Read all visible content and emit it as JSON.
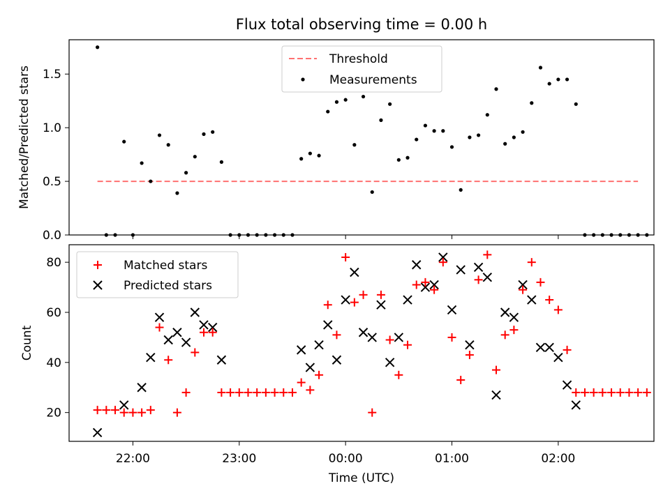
{
  "chart_data": [
    {
      "type": "scatter",
      "title": "Flux total observing time = 0.00 h",
      "xlabel": "",
      "ylabel": "Matched/Predicted stars",
      "xlim": [
        "21:24",
        "02:54"
      ],
      "ylim": [
        0,
        1.82
      ],
      "y_ticks": [
        {
          "value": 0.0,
          "label": "0.0"
        },
        {
          "value": 0.5,
          "label": "0.5"
        },
        {
          "value": 1.0,
          "label": "1.0"
        },
        {
          "value": 1.5,
          "label": "1.5"
        }
      ],
      "grid": false,
      "legend_position": "top-center",
      "series": [
        {
          "name": "Threshold",
          "kind": "dashed-line",
          "color": "#ff7070",
          "x": [
            "21:40",
            "02:45"
          ],
          "y": [
            0.5,
            0.5
          ]
        },
        {
          "name": "Measurements",
          "kind": "points",
          "color": "#000000",
          "points": [
            [
              "21:40",
              1.75
            ],
            [
              "21:45",
              0.0
            ],
            [
              "21:50",
              0.0
            ],
            [
              "21:55",
              0.87
            ],
            [
              "22:00",
              0.0
            ],
            [
              "22:05",
              0.67
            ],
            [
              "22:10",
              0.5
            ],
            [
              "22:15",
              0.93
            ],
            [
              "22:20",
              0.84
            ],
            [
              "22:25",
              0.39
            ],
            [
              "22:30",
              0.58
            ],
            [
              "22:35",
              0.73
            ],
            [
              "22:40",
              0.94
            ],
            [
              "22:45",
              0.96
            ],
            [
              "22:50",
              0.68
            ],
            [
              "22:55",
              0.0
            ],
            [
              "23:00",
              0.0
            ],
            [
              "23:05",
              0.0
            ],
            [
              "23:10",
              0.0
            ],
            [
              "23:15",
              0.0
            ],
            [
              "23:20",
              0.0
            ],
            [
              "23:25",
              0.0
            ],
            [
              "23:30",
              0.0
            ],
            [
              "23:35",
              0.71
            ],
            [
              "23:40",
              0.76
            ],
            [
              "23:45",
              0.74
            ],
            [
              "23:50",
              1.15
            ],
            [
              "23:55",
              1.24
            ],
            [
              "00:00",
              1.26
            ],
            [
              "00:05",
              0.84
            ],
            [
              "00:10",
              1.29
            ],
            [
              "00:15",
              0.4
            ],
            [
              "00:20",
              1.07
            ],
            [
              "00:25",
              1.22
            ],
            [
              "00:30",
              0.7
            ],
            [
              "00:35",
              0.72
            ],
            [
              "00:40",
              0.89
            ],
            [
              "00:45",
              1.02
            ],
            [
              "00:50",
              0.97
            ],
            [
              "00:55",
              0.97
            ],
            [
              "01:00",
              0.82
            ],
            [
              "01:05",
              0.42
            ],
            [
              "01:10",
              0.91
            ],
            [
              "01:15",
              0.93
            ],
            [
              "01:20",
              1.12
            ],
            [
              "01:25",
              1.36
            ],
            [
              "01:30",
              0.85
            ],
            [
              "01:35",
              0.91
            ],
            [
              "01:40",
              0.96
            ],
            [
              "01:45",
              1.23
            ],
            [
              "01:50",
              1.56
            ],
            [
              "01:55",
              1.41
            ],
            [
              "02:00",
              1.45
            ],
            [
              "02:05",
              1.45
            ],
            [
              "02:10",
              1.22
            ],
            [
              "02:15",
              0.0
            ],
            [
              "02:20",
              0.0
            ],
            [
              "02:25",
              0.0
            ],
            [
              "02:30",
              0.0
            ],
            [
              "02:35",
              0.0
            ],
            [
              "02:40",
              0.0
            ],
            [
              "02:45",
              0.0
            ],
            [
              "02:50",
              0.0
            ]
          ]
        }
      ]
    },
    {
      "type": "scatter",
      "title": "",
      "xlabel": "Time (UTC)",
      "ylabel": "Count",
      "xlim": [
        "21:24",
        "02:54"
      ],
      "ylim": [
        8.5,
        87
      ],
      "x_ticks": [
        {
          "value": "22:00",
          "label": "22:00"
        },
        {
          "value": "23:00",
          "label": "23:00"
        },
        {
          "value": "00:00",
          "label": "00:00"
        },
        {
          "value": "01:00",
          "label": "01:00"
        },
        {
          "value": "02:00",
          "label": "02:00"
        }
      ],
      "y_ticks": [
        {
          "value": 20,
          "label": "20"
        },
        {
          "value": 40,
          "label": "40"
        },
        {
          "value": 60,
          "label": "60"
        },
        {
          "value": 80,
          "label": "80"
        }
      ],
      "grid": false,
      "legend_position": "top-left",
      "series": [
        {
          "name": "Matched stars",
          "marker": "plus",
          "color": "#ff0000",
          "points": [
            [
              "21:40",
              21
            ],
            [
              "21:45",
              21
            ],
            [
              "21:50",
              21
            ],
            [
              "21:55",
              20
            ],
            [
              "22:00",
              20
            ],
            [
              "22:05",
              20
            ],
            [
              "22:10",
              21
            ],
            [
              "22:15",
              54
            ],
            [
              "22:20",
              41
            ],
            [
              "22:25",
              20
            ],
            [
              "22:30",
              28
            ],
            [
              "22:35",
              44
            ],
            [
              "22:40",
              52
            ],
            [
              "22:45",
              52
            ],
            [
              "22:50",
              28
            ],
            [
              "22:55",
              28
            ],
            [
              "23:00",
              28
            ],
            [
              "23:05",
              28
            ],
            [
              "23:10",
              28
            ],
            [
              "23:15",
              28
            ],
            [
              "23:20",
              28
            ],
            [
              "23:25",
              28
            ],
            [
              "23:30",
              28
            ],
            [
              "23:35",
              32
            ],
            [
              "23:40",
              29
            ],
            [
              "23:45",
              35
            ],
            [
              "23:50",
              63
            ],
            [
              "23:55",
              51
            ],
            [
              "00:00",
              82
            ],
            [
              "00:05",
              64
            ],
            [
              "00:10",
              67
            ],
            [
              "00:15",
              20
            ],
            [
              "00:20",
              67
            ],
            [
              "00:25",
              49
            ],
            [
              "00:30",
              35
            ],
            [
              "00:35",
              47
            ],
            [
              "00:40",
              71
            ],
            [
              "00:45",
              72
            ],
            [
              "00:50",
              69
            ],
            [
              "00:55",
              80
            ],
            [
              "01:00",
              50
            ],
            [
              "01:05",
              33
            ],
            [
              "01:10",
              43
            ],
            [
              "01:15",
              73
            ],
            [
              "01:20",
              83
            ],
            [
              "01:25",
              37
            ],
            [
              "01:30",
              51
            ],
            [
              "01:35",
              53
            ],
            [
              "01:40",
              69
            ],
            [
              "01:45",
              80
            ],
            [
              "01:50",
              72
            ],
            [
              "01:55",
              65
            ],
            [
              "02:00",
              61
            ],
            [
              "02:05",
              45
            ],
            [
              "02:10",
              28
            ],
            [
              "02:15",
              28
            ],
            [
              "02:20",
              28
            ],
            [
              "02:25",
              28
            ],
            [
              "02:30",
              28
            ],
            [
              "02:35",
              28
            ],
            [
              "02:40",
              28
            ],
            [
              "02:45",
              28
            ],
            [
              "02:50",
              28
            ]
          ]
        },
        {
          "name": "Predicted stars",
          "marker": "x",
          "color": "#000000",
          "points": [
            [
              "21:40",
              12
            ],
            [
              "21:55",
              23
            ],
            [
              "22:05",
              30
            ],
            [
              "22:10",
              42
            ],
            [
              "22:15",
              58
            ],
            [
              "22:20",
              49
            ],
            [
              "22:25",
              52
            ],
            [
              "22:30",
              48
            ],
            [
              "22:35",
              60
            ],
            [
              "22:40",
              55
            ],
            [
              "22:45",
              54
            ],
            [
              "22:50",
              41
            ],
            [
              "23:35",
              45
            ],
            [
              "23:40",
              38
            ],
            [
              "23:45",
              47
            ],
            [
              "23:50",
              55
            ],
            [
              "23:55",
              41
            ],
            [
              "00:00",
              65
            ],
            [
              "00:05",
              76
            ],
            [
              "00:10",
              52
            ],
            [
              "00:15",
              50
            ],
            [
              "00:20",
              63
            ],
            [
              "00:25",
              40
            ],
            [
              "00:30",
              50
            ],
            [
              "00:35",
              65
            ],
            [
              "00:40",
              79
            ],
            [
              "00:45",
              70
            ],
            [
              "00:50",
              71
            ],
            [
              "00:55",
              82
            ],
            [
              "01:00",
              61
            ],
            [
              "01:05",
              77
            ],
            [
              "01:10",
              47
            ],
            [
              "01:15",
              78
            ],
            [
              "01:20",
              74
            ],
            [
              "01:25",
              27
            ],
            [
              "01:30",
              60
            ],
            [
              "01:35",
              58
            ],
            [
              "01:40",
              71
            ],
            [
              "01:45",
              65
            ],
            [
              "01:50",
              46
            ],
            [
              "01:55",
              46
            ],
            [
              "02:00",
              42
            ],
            [
              "02:05",
              31
            ],
            [
              "02:10",
              23
            ]
          ]
        }
      ]
    }
  ]
}
